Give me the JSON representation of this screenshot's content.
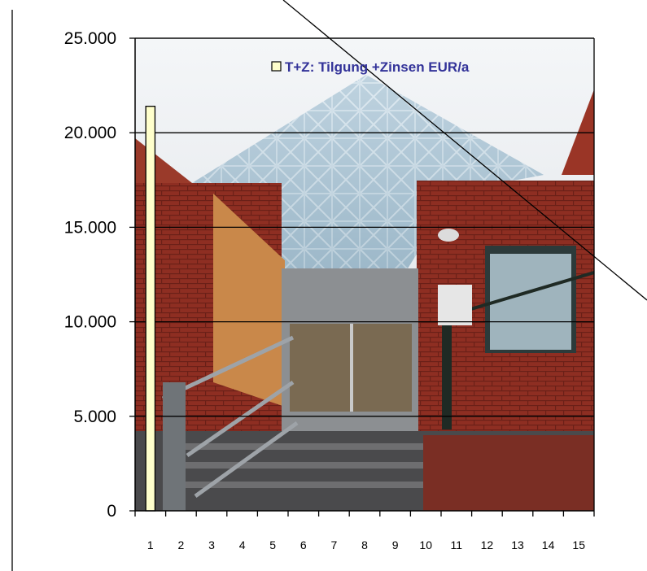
{
  "chart_data": {
    "type": "bar",
    "categories": [
      "1",
      "2",
      "3",
      "4",
      "5",
      "6",
      "7",
      "8",
      "9",
      "10",
      "11",
      "12",
      "13",
      "14",
      "15"
    ],
    "series": [
      {
        "name": "T+Z: Tilgung +Zinsen EUR/a",
        "values": [
          21400,
          0,
          0,
          0,
          0,
          0,
          0,
          0,
          0,
          0,
          0,
          0,
          0,
          0,
          0
        ]
      }
    ],
    "ylim": [
      0,
      25000
    ],
    "yticks": [
      "0",
      "5.000",
      "10.000",
      "15.000",
      "20.000",
      "25.000"
    ],
    "ytick_values": [
      0,
      5000,
      10000,
      15000,
      20000,
      25000
    ],
    "grid": true,
    "legend_position": "top-right",
    "background": "photograph of a brick building entrance with a glass pyramid roof and stairs",
    "colors": {
      "bar_fill": "#ffffcc",
      "bar_stroke": "#000000",
      "legend_text": "#333399",
      "gridline": "#000000"
    }
  }
}
